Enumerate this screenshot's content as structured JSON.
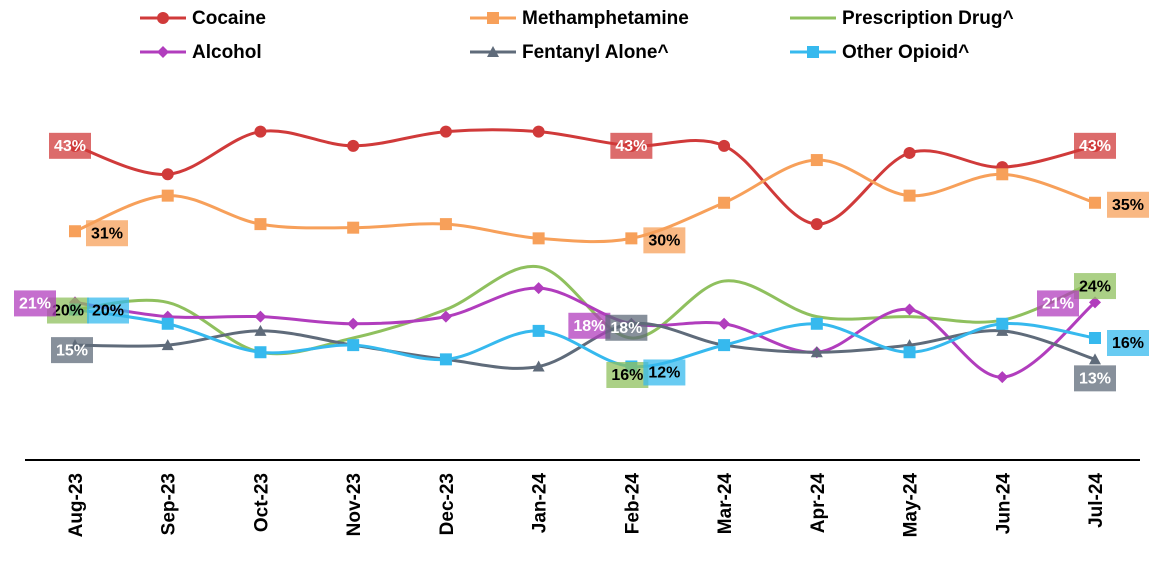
{
  "chart_data": {
    "type": "line",
    "categories": [
      "Aug-23",
      "Sep-23",
      "Oct-23",
      "Nov-23",
      "Dec-23",
      "Jan-24",
      "Feb-24",
      "Mar-24",
      "Apr-24",
      "May-24",
      "Jun-24",
      "Jul-24"
    ],
    "ylim": [
      -1,
      50
    ],
    "series": [
      {
        "name": "Cocaine",
        "color": "#d03a3a",
        "marker": "circle",
        "values": [
          43,
          39,
          45,
          43,
          45,
          45,
          43,
          43,
          32,
          42,
          40,
          43
        ],
        "value_labels": [
          "43%",
          null,
          null,
          null,
          null,
          null,
          "43%",
          null,
          null,
          null,
          null,
          "43%"
        ]
      },
      {
        "name": "Methamphetamine",
        "color": "#f7a05a",
        "marker": "square",
        "values": [
          31,
          36,
          32,
          31.5,
          32,
          30,
          30,
          35,
          41,
          36,
          39,
          35
        ],
        "value_labels": [
          "31%",
          null,
          null,
          null,
          null,
          null,
          "30%",
          null,
          null,
          null,
          null,
          "35%"
        ]
      },
      {
        "name": "Prescription Drug^",
        "color": "#8fc05e",
        "marker": "none",
        "values": [
          20,
          21,
          14,
          16,
          20,
          26,
          16,
          24,
          19,
          19,
          18.5,
          24
        ],
        "value_labels": [
          "20%",
          null,
          null,
          null,
          null,
          null,
          "16%",
          null,
          null,
          null,
          null,
          "24%"
        ]
      },
      {
        "name": "Alcohol",
        "color": "#b13dbd",
        "marker": "diamond",
        "values": [
          21,
          19,
          19,
          18,
          19,
          23,
          18,
          18,
          14,
          20,
          10.5,
          21
        ],
        "value_labels": [
          "21%",
          null,
          null,
          null,
          null,
          null,
          "18%",
          null,
          null,
          null,
          null,
          "21%"
        ]
      },
      {
        "name": "Fentanyl Alone^",
        "color": "#5f6b7a",
        "marker": "triangle",
        "values": [
          15,
          15,
          17,
          15,
          13,
          12,
          18,
          15,
          14,
          15,
          17,
          13
        ],
        "value_labels": [
          "15%",
          null,
          null,
          null,
          null,
          null,
          "18%",
          null,
          null,
          null,
          null,
          "13%"
        ]
      },
      {
        "name": "Other Opioid^",
        "color": "#36b9ee",
        "marker": "square",
        "values": [
          20,
          18,
          14,
          15,
          13,
          17,
          12,
          15,
          18,
          14,
          18,
          16
        ],
        "value_labels": [
          "20%",
          null,
          null,
          null,
          null,
          null,
          "12%",
          null,
          null,
          null,
          null,
          "16%"
        ]
      }
    ]
  }
}
